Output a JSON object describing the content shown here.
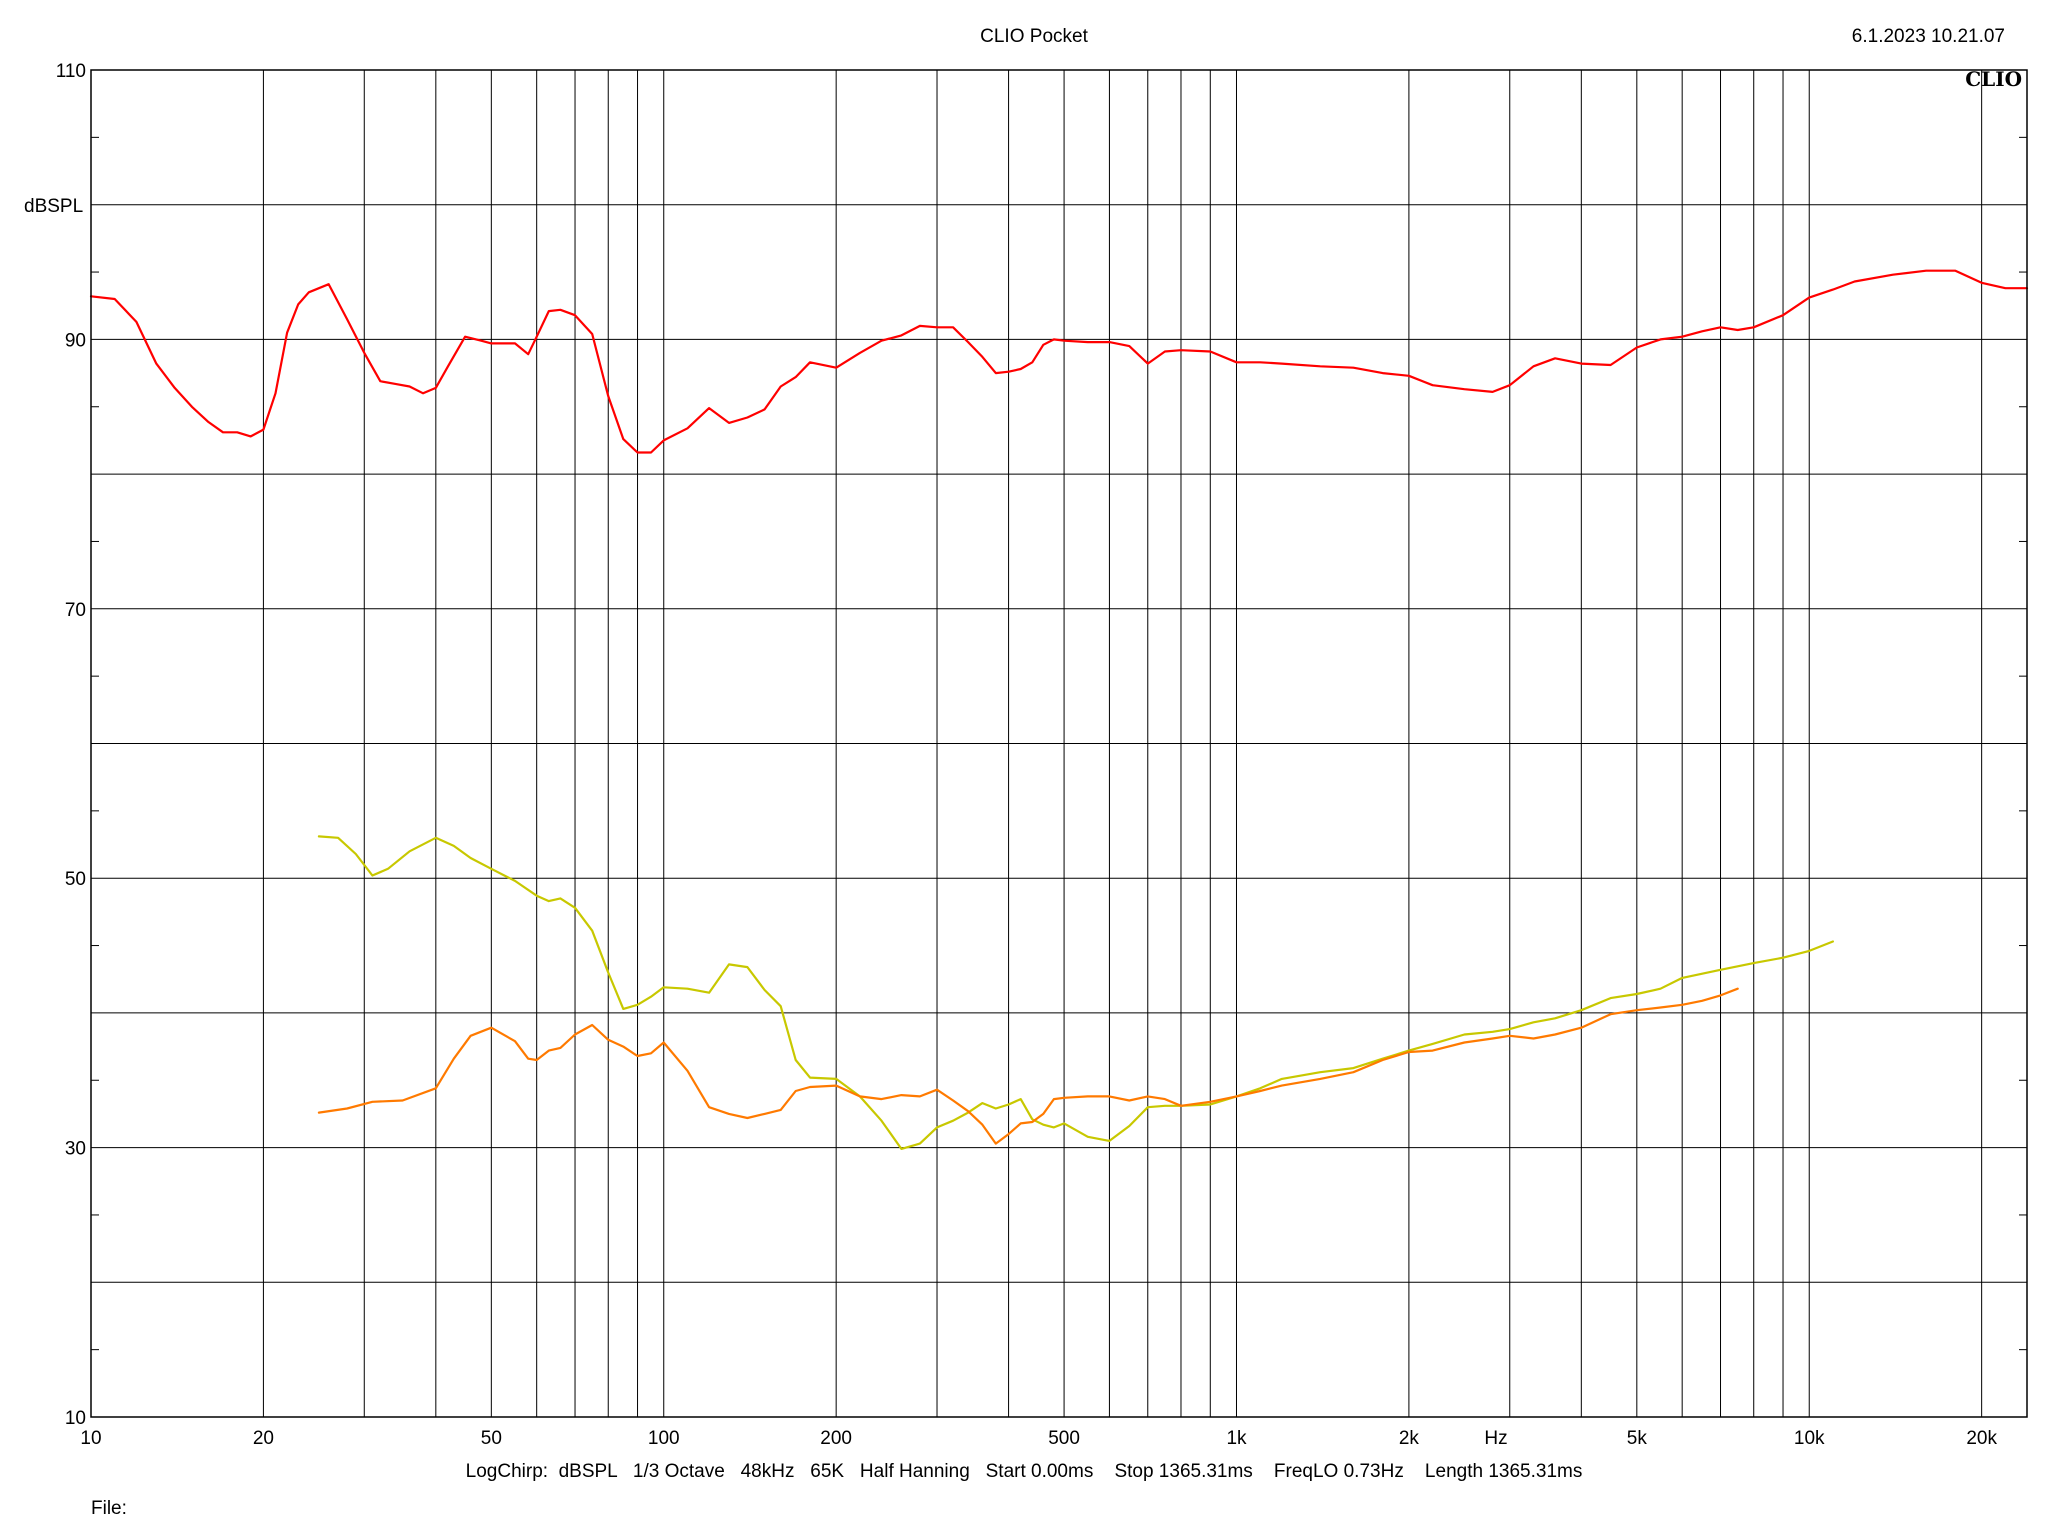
{
  "header": {
    "title": "CLIO Pocket",
    "timestamp": "6.1.2023 10.21.07",
    "logo": "CLIO"
  },
  "footer": {
    "info": "LogChirp:  dBSPL   1/3 Octave   48kHz   65K   Half Hanning   Start 0.00ms    Stop 1365.31ms    FreqLO 0.73Hz    Length 1365.31ms",
    "file_label": "File:"
  },
  "chart_data": {
    "type": "line",
    "title": "CLIO Pocket",
    "xlabel": "Hz",
    "ylabel": "dBSPL",
    "xscale": "log",
    "xlim": [
      10,
      24000
    ],
    "ylim": [
      10,
      110
    ],
    "grid": true,
    "y_tick_labels": [
      {
        "value": 110,
        "label": "110"
      },
      {
        "value": 90,
        "label": "90"
      },
      {
        "value": 70,
        "label": "70"
      },
      {
        "value": 50,
        "label": "50"
      },
      {
        "value": 30,
        "label": "30"
      },
      {
        "value": 10,
        "label": "10"
      }
    ],
    "x_tick_labels": [
      {
        "value": 10,
        "label": "10"
      },
      {
        "value": 20,
        "label": "20"
      },
      {
        "value": 50,
        "label": "50"
      },
      {
        "value": 100,
        "label": "100"
      },
      {
        "value": 200,
        "label": "200"
      },
      {
        "value": 500,
        "label": "500"
      },
      {
        "value": 1000,
        "label": "1k"
      },
      {
        "value": 2000,
        "label": "2k"
      },
      {
        "value": 5000,
        "label": "5k"
      },
      {
        "value": 10000,
        "label": "10k"
      },
      {
        "value": 20000,
        "label": "20k"
      }
    ],
    "series": [
      {
        "color": "#ff0000",
        "x": [
          10,
          11,
          12,
          13,
          14,
          15,
          16,
          17,
          18,
          19,
          20,
          21,
          22,
          23,
          24,
          26,
          28,
          30,
          32,
          34,
          36,
          38,
          40,
          42,
          45,
          48,
          50,
          55,
          58,
          60,
          63,
          66,
          70,
          75,
          80,
          85,
          90,
          95,
          100,
          110,
          120,
          130,
          140,
          150,
          160,
          170,
          180,
          200,
          220,
          240,
          260,
          280,
          300,
          320,
          340,
          360,
          380,
          400,
          420,
          440,
          460,
          480,
          500,
          550,
          600,
          650,
          700,
          750,
          800,
          900,
          1000,
          1100,
          1200,
          1400,
          1600,
          1800,
          2000,
          2200,
          2500,
          2800,
          3000,
          3300,
          3600,
          4000,
          4500,
          5000,
          5500,
          6000,
          6500,
          7000,
          7500,
          8000,
          9000,
          10000,
          11000,
          12000,
          14000,
          16000,
          18000,
          20000,
          22000,
          24000
        ],
        "y": [
          93.2,
          93.0,
          91.3,
          88.2,
          86.4,
          85.0,
          83.9,
          83.1,
          83.1,
          82.8,
          83.3,
          86.0,
          90.5,
          92.6,
          93.5,
          94.1,
          91.5,
          89.0,
          86.9,
          86.7,
          86.5,
          86.0,
          86.4,
          88.0,
          90.2,
          89.9,
          89.7,
          89.7,
          88.9,
          90.2,
          92.1,
          92.2,
          91.8,
          90.4,
          85.8,
          82.6,
          81.6,
          81.6,
          82.5,
          83.4,
          84.9,
          83.8,
          84.2,
          84.8,
          86.5,
          87.2,
          88.3,
          87.9,
          89.0,
          89.9,
          90.3,
          91.0,
          90.9,
          90.9,
          89.8,
          88.7,
          87.5,
          87.6,
          87.8,
          88.3,
          89.6,
          90.0,
          89.9,
          89.8,
          89.8,
          89.5,
          88.2,
          89.1,
          89.2,
          89.1,
          88.3,
          88.3,
          88.2,
          88.0,
          87.9,
          87.5,
          87.3,
          86.6,
          86.3,
          86.1,
          86.6,
          88.0,
          88.6,
          88.2,
          88.1,
          89.4,
          90.0,
          90.2,
          90.6,
          90.9,
          90.7,
          90.9,
          91.8,
          93.1,
          93.7,
          94.3,
          94.8,
          95.1,
          95.1,
          94.2,
          93.8,
          93.8
        ]
      },
      {
        "color": "#c8c800",
        "x": [
          25,
          27,
          29,
          31,
          33,
          36,
          40,
          43,
          46,
          50,
          55,
          60,
          63,
          66,
          70,
          75,
          80,
          85,
          90,
          95,
          100,
          110,
          120,
          130,
          140,
          150,
          160,
          170,
          180,
          200,
          220,
          240,
          260,
          280,
          300,
          320,
          340,
          360,
          380,
          400,
          420,
          440,
          460,
          480,
          500,
          550,
          600,
          650,
          700,
          750,
          800,
          900,
          1000,
          1100,
          1200,
          1400,
          1600,
          1800,
          2000,
          2200,
          2500,
          2800,
          3000,
          3300,
          3600,
          4000,
          4500,
          5000,
          5500,
          6000,
          7000,
          8000,
          9000,
          10000,
          11000
        ],
        "y": [
          53.1,
          53.0,
          51.8,
          50.2,
          50.7,
          52.0,
          53.0,
          52.4,
          51.5,
          50.7,
          49.8,
          48.7,
          48.3,
          48.5,
          47.8,
          46.1,
          43.0,
          40.3,
          40.6,
          41.2,
          41.9,
          41.8,
          41.5,
          43.6,
          43.4,
          41.7,
          40.5,
          36.5,
          35.2,
          35.1,
          33.8,
          32.0,
          29.9,
          30.3,
          31.5,
          32.0,
          32.6,
          33.3,
          32.9,
          33.2,
          33.6,
          32.1,
          31.7,
          31.5,
          31.8,
          30.8,
          30.5,
          31.6,
          33.0,
          33.1,
          33.1,
          33.2,
          33.8,
          34.4,
          35.1,
          35.6,
          35.9,
          36.6,
          37.2,
          37.7,
          38.4,
          38.6,
          38.8,
          39.3,
          39.6,
          40.2,
          41.1,
          41.4,
          41.8,
          42.6,
          43.2,
          43.7,
          44.1,
          44.6,
          45.3
        ]
      },
      {
        "color": "#ff7a00",
        "x": [
          25,
          28,
          31,
          35,
          40,
          43,
          46,
          50,
          55,
          58,
          60,
          63,
          66,
          70,
          75,
          80,
          85,
          90,
          95,
          100,
          110,
          120,
          130,
          140,
          150,
          160,
          170,
          180,
          200,
          220,
          240,
          260,
          280,
          300,
          320,
          340,
          360,
          380,
          400,
          420,
          440,
          460,
          480,
          500,
          550,
          600,
          650,
          700,
          750,
          800,
          900,
          1000,
          1100,
          1200,
          1400,
          1600,
          1800,
          2000,
          2200,
          2500,
          2800,
          3000,
          3300,
          3600,
          4000,
          4500,
          5000,
          5500,
          6000,
          6500,
          7000,
          7500
        ],
        "y": [
          32.6,
          32.9,
          33.4,
          33.5,
          34.4,
          36.6,
          38.3,
          38.9,
          37.9,
          36.6,
          36.5,
          37.2,
          37.4,
          38.4,
          39.1,
          38.0,
          37.5,
          36.8,
          37.0,
          37.8,
          35.7,
          33.0,
          32.5,
          32.2,
          32.5,
          32.8,
          34.2,
          34.5,
          34.6,
          33.8,
          33.6,
          33.9,
          33.8,
          34.3,
          33.5,
          32.7,
          31.7,
          30.3,
          31.0,
          31.8,
          31.9,
          32.5,
          33.6,
          33.7,
          33.8,
          33.8,
          33.5,
          33.8,
          33.6,
          33.1,
          33.4,
          33.8,
          34.2,
          34.6,
          35.1,
          35.6,
          36.5,
          37.1,
          37.2,
          37.8,
          38.1,
          38.3,
          38.1,
          38.4,
          38.9,
          39.9,
          40.2,
          40.4,
          40.6,
          40.9,
          41.3,
          41.8
        ]
      }
    ]
  }
}
